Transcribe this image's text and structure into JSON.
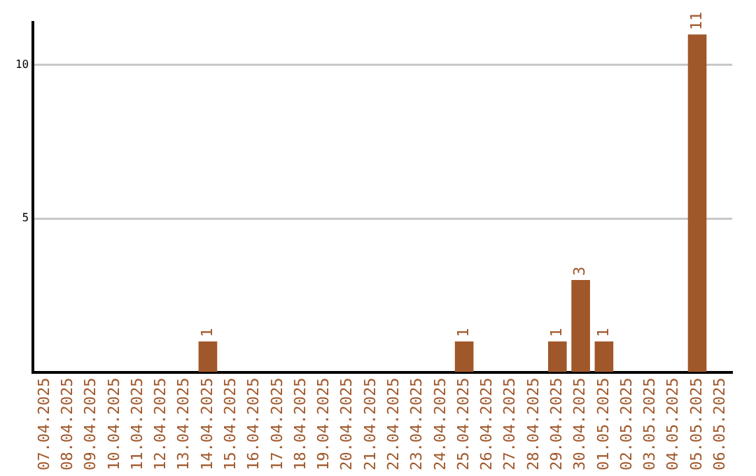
{
  "chart_data": {
    "type": "bar",
    "categories": [
      "07.04.2025",
      "08.04.2025",
      "09.04.2025",
      "10.04.2025",
      "11.04.2025",
      "12.04.2025",
      "13.04.2025",
      "14.04.2025",
      "15.04.2025",
      "16.04.2025",
      "17.04.2025",
      "18.04.2025",
      "19.04.2025",
      "20.04.2025",
      "21.04.2025",
      "22.04.2025",
      "23.04.2025",
      "24.04.2025",
      "25.04.2025",
      "26.04.2025",
      "27.04.2025",
      "28.04.2025",
      "29.04.2025",
      "30.04.2025",
      "01.05.2025",
      "02.05.2025",
      "03.05.2025",
      "04.05.2025",
      "05.05.2025",
      "06.05.2025"
    ],
    "values": [
      0,
      0,
      0,
      0,
      0,
      0,
      0,
      1,
      0,
      0,
      0,
      0,
      0,
      0,
      0,
      0,
      0,
      0,
      1,
      0,
      0,
      0,
      1,
      3,
      1,
      0,
      0,
      0,
      11,
      0
    ],
    "value_labels": [
      null,
      null,
      null,
      null,
      null,
      null,
      null,
      "1",
      null,
      null,
      null,
      null,
      null,
      null,
      null,
      null,
      null,
      null,
      "1",
      null,
      null,
      null,
      "1",
      "3",
      "1",
      null,
      null,
      null,
      "11",
      null
    ],
    "color": "#a0572a",
    "ylim": [
      0,
      11.4
    ],
    "yticks": [
      5,
      10
    ],
    "grid": "y",
    "legend": false
  }
}
